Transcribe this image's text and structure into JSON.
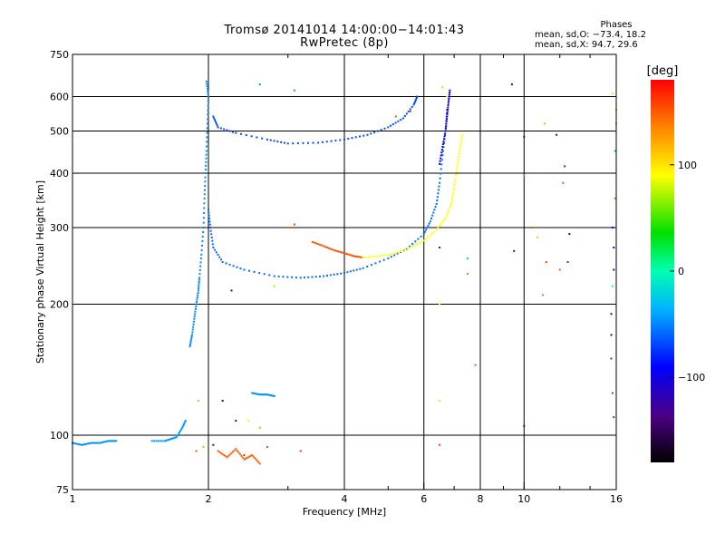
{
  "header": {
    "title_line1": "Tromsø 20141014 14:00:00−14:01:43",
    "title_line2": "RwPretec (8p)"
  },
  "phases_box": {
    "title": "Phases",
    "o_mode_line": "mean, sd,O: −73.4, 18.2",
    "x_mode_line": "mean, sd,X:  94.7, 29.6"
  },
  "colorbar": {
    "unit_label": "[deg]",
    "tick_labels": [
      "100",
      "0",
      "−100"
    ],
    "tick_values": [
      100,
      0,
      -100
    ],
    "range": [
      -180,
      180
    ]
  },
  "chart_data": {
    "type": "scatter",
    "title": "Tromsø 20141014 14:00:00−14:01:43",
    "subtitle": "RwPretec (8p)",
    "xlabel": "Frequency [MHz]",
    "ylabel": "Stationary phase Virtual Height [km]",
    "x_scale": "log",
    "y_scale": "log",
    "xlim": [
      1,
      16
    ],
    "ylim": [
      75,
      750
    ],
    "x_ticks": [
      1,
      2,
      4,
      6,
      8,
      10,
      16
    ],
    "y_ticks": [
      75,
      100,
      200,
      300,
      400,
      500,
      600,
      750
    ],
    "grid": true,
    "color_variable": "phase [deg]",
    "traces": [
      {
        "points": [
          [
            1.0,
            96
          ],
          [
            1.05,
            95
          ],
          [
            1.1,
            96
          ],
          [
            1.15,
            96
          ],
          [
            1.2,
            97
          ],
          [
            1.25,
            97
          ]
        ],
        "phase": -60
      },
      {
        "points": [
          [
            1.5,
            97
          ],
          [
            1.6,
            97
          ],
          [
            1.65,
            98
          ],
          [
            1.7,
            99
          ],
          [
            1.75,
            104
          ],
          [
            1.78,
            108
          ]
        ],
        "phase": -55
      },
      {
        "points": [
          [
            1.82,
            160
          ],
          [
            1.84,
            170
          ],
          [
            1.86,
            185
          ],
          [
            1.88,
            200
          ],
          [
            1.9,
            215
          ],
          [
            1.91,
            230
          ],
          [
            1.93,
            260
          ],
          [
            1.95,
            300
          ],
          [
            1.96,
            350
          ],
          [
            1.97,
            400
          ],
          [
            1.98,
            450
          ],
          [
            1.99,
            520
          ],
          [
            2.0,
            600
          ],
          [
            1.98,
            650
          ]
        ],
        "phase": -62
      },
      {
        "points": [
          [
            2.0,
            330
          ],
          [
            2.02,
            300
          ],
          [
            2.05,
            270
          ],
          [
            2.15,
            250
          ],
          [
            2.4,
            240
          ],
          [
            2.8,
            232
          ],
          [
            3.2,
            230
          ],
          [
            3.6,
            232
          ],
          [
            4.0,
            236
          ],
          [
            4.4,
            242
          ],
          [
            5.0,
            255
          ],
          [
            5.5,
            268
          ],
          [
            6.0,
            290
          ],
          [
            6.2,
            310
          ],
          [
            6.4,
            340
          ],
          [
            6.5,
            380
          ],
          [
            6.6,
            440
          ],
          [
            6.7,
            500
          ],
          [
            6.75,
            560
          ]
        ],
        "phase": -70
      },
      {
        "points": [
          [
            2.05,
            540
          ],
          [
            2.1,
            510
          ],
          [
            2.3,
            495
          ],
          [
            2.7,
            478
          ],
          [
            3.0,
            468
          ],
          [
            3.5,
            470
          ],
          [
            4.0,
            478
          ],
          [
            4.5,
            490
          ],
          [
            5.0,
            510
          ],
          [
            5.4,
            535
          ],
          [
            5.7,
            575
          ],
          [
            5.8,
            600
          ]
        ],
        "phase": -78
      },
      {
        "points": [
          [
            3.4,
            278
          ],
          [
            3.6,
            272
          ],
          [
            3.8,
            266
          ],
          [
            4.0,
            262
          ],
          [
            4.2,
            258
          ],
          [
            4.4,
            256
          ]
        ],
        "phase": 150
      },
      {
        "points": [
          [
            4.4,
            256
          ],
          [
            4.8,
            258
          ],
          [
            5.2,
            262
          ],
          [
            5.6,
            270
          ],
          [
            6.0,
            280
          ],
          [
            6.4,
            296
          ],
          [
            6.7,
            315
          ],
          [
            6.9,
            340
          ],
          [
            7.0,
            370
          ],
          [
            7.1,
            410
          ],
          [
            7.2,
            450
          ],
          [
            7.3,
            490
          ]
        ],
        "phase": 90
      },
      {
        "points": [
          [
            6.5,
            420
          ],
          [
            6.6,
            460
          ],
          [
            6.7,
            500
          ],
          [
            6.75,
            540
          ],
          [
            6.8,
            580
          ],
          [
            6.85,
            620
          ]
        ],
        "phase": -115
      },
      {
        "points": [
          [
            2.5,
            125
          ],
          [
            2.6,
            124
          ],
          [
            2.7,
            124
          ],
          [
            2.8,
            123
          ]
        ],
        "phase": -60
      },
      {
        "points": [
          [
            2.1,
            92
          ],
          [
            2.2,
            89
          ],
          [
            2.3,
            93
          ],
          [
            2.4,
            88
          ],
          [
            2.5,
            90
          ],
          [
            2.6,
            86
          ]
        ],
        "phase": 145
      }
    ],
    "scatter_points": [
      [
        1.88,
        92,
        150
      ],
      [
        1.95,
        94,
        120
      ],
      [
        2.05,
        95,
        -130
      ],
      [
        2.4,
        90,
        170
      ],
      [
        2.7,
        94,
        160
      ],
      [
        3.2,
        92,
        160
      ],
      [
        2.3,
        108,
        -110
      ],
      [
        2.6,
        104,
        60
      ],
      [
        2.15,
        120,
        -100
      ],
      [
        1.9,
        120,
        120
      ],
      [
        2.45,
        108,
        90
      ],
      [
        6.5,
        120,
        80
      ],
      [
        6.5,
        95,
        160
      ],
      [
        6.5,
        270,
        -140
      ],
      [
        7.5,
        255,
        30
      ],
      [
        7.8,
        145,
        150
      ],
      [
        9.5,
        265,
        -130
      ],
      [
        10.0,
        105,
        -120
      ],
      [
        10.0,
        485,
        -120
      ],
      [
        10.0,
        395,
        140
      ],
      [
        10.6,
        300,
        140
      ],
      [
        10.7,
        285,
        110
      ],
      [
        11.1,
        520,
        60
      ],
      [
        11.8,
        490,
        -120
      ],
      [
        12.3,
        415,
        -85
      ],
      [
        12.5,
        250,
        -80
      ],
      [
        12.6,
        290,
        -120
      ],
      [
        11.2,
        250,
        160
      ],
      [
        11.0,
        210,
        140
      ],
      [
        12.0,
        240,
        150
      ],
      [
        12.2,
        380,
        150
      ],
      [
        15.6,
        190,
        -130
      ],
      [
        15.6,
        170,
        -110
      ],
      [
        15.6,
        150,
        -80
      ],
      [
        15.7,
        125,
        -70
      ],
      [
        15.8,
        110,
        -80
      ],
      [
        15.8,
        270,
        -110
      ],
      [
        15.7,
        300,
        -100
      ],
      [
        15.9,
        350,
        140
      ],
      [
        16.0,
        520,
        60
      ],
      [
        15.9,
        450,
        30
      ],
      [
        16.0,
        560,
        120
      ],
      [
        15.8,
        240,
        -130
      ],
      [
        15.7,
        220,
        0
      ],
      [
        15.7,
        610,
        80
      ],
      [
        2.6,
        640,
        -60
      ],
      [
        3.1,
        620,
        -60
      ],
      [
        9.4,
        640,
        -120
      ],
      [
        2.25,
        215,
        -130
      ],
      [
        2.8,
        220,
        70
      ],
      [
        3.0,
        300,
        140
      ],
      [
        3.1,
        305,
        160
      ],
      [
        5.2,
        540,
        150
      ],
      [
        5.6,
        555,
        160
      ],
      [
        6.6,
        630,
        110
      ],
      [
        6.75,
        600,
        90
      ],
      [
        7.5,
        235,
        140
      ],
      [
        6.5,
        200,
        90
      ]
    ]
  }
}
